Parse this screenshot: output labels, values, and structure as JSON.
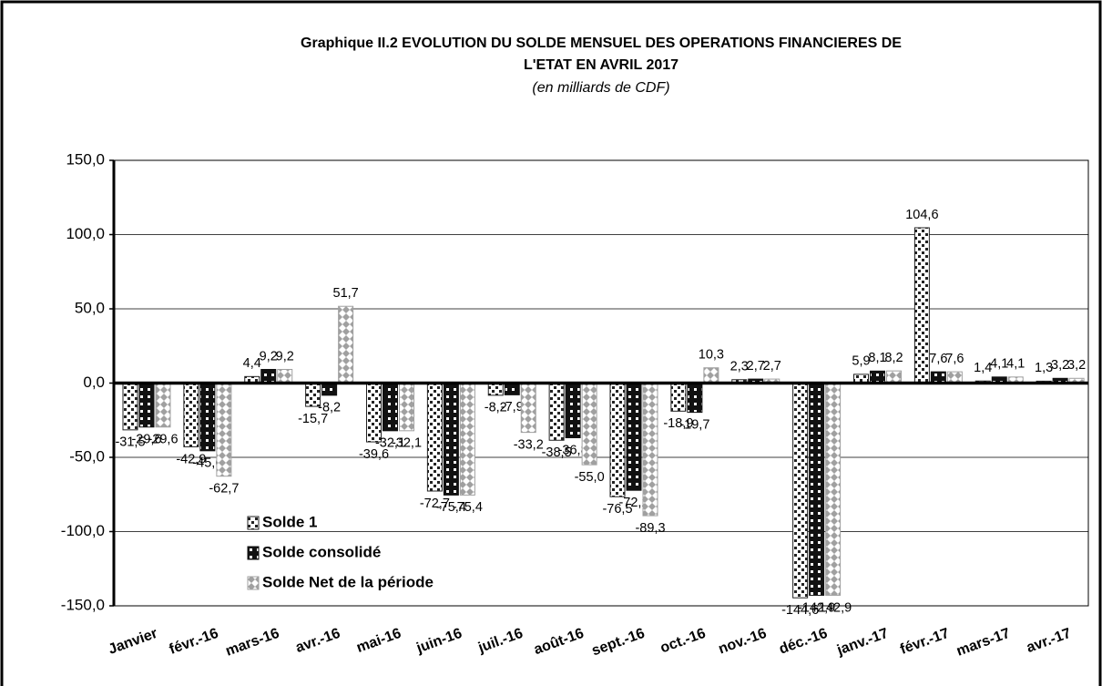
{
  "chart_data": {
    "type": "bar",
    "title": [
      "Graphique II.2  EVOLUTION DU SOLDE MENSUEL DES OPERATIONS FINANCIERES DE",
      "L'ETAT  EN  AVRIL  2017"
    ],
    "subtitle": "(en milliards de CDF)",
    "categories": [
      "Janvier",
      "févr.-16",
      "mars-16",
      "avr.-16",
      "mai-16",
      "juin-16",
      "juil.-16",
      "août-16",
      "sept.-16",
      "oct.-16",
      "nov.-16",
      "déc.-16",
      "janv.-17",
      "févr.-17",
      "mars-17",
      "avr.-17"
    ],
    "series": [
      {
        "name": "Solde 1",
        "color": "#222222",
        "values": [
          -31.5,
          -42.9,
          4.4,
          -15.7,
          -39.6,
          -72.7,
          -8.2,
          -38.5,
          -76.5,
          -18.9,
          2.3,
          -144.6,
          5.9,
          104.6,
          1.4,
          1.3
        ],
        "value_labels": [
          "-31,5",
          "-42,9",
          "4,4",
          "-15,7",
          "-39,6",
          "-72,7",
          "-8,2",
          "-38,5",
          "-76,5",
          "-18,9",
          "2,3",
          "-144,6",
          "5,9",
          "104,6",
          "1,4",
          "1,3"
        ]
      },
      {
        "name": "Solde consolidé",
        "color": "#111111",
        "values": [
          -29.6,
          -45.6,
          9.2,
          -8.2,
          -32.1,
          -75.4,
          -7.9,
          -36.8,
          -72.2,
          -19.7,
          2.7,
          -142.9,
          8.1,
          7.6,
          4.1,
          3.2
        ],
        "value_labels": [
          "-29,6",
          "-45,6",
          "9,2",
          "-8,2",
          "-32,1",
          "-75,4",
          "-7,9",
          "-36,8",
          "-72,2",
          "-19,7",
          "2,7",
          "-142,9",
          "8,1",
          "7,6",
          "4,1",
          "3,2"
        ]
      },
      {
        "name": "Solde Net de la période",
        "color": "#a0a0a0",
        "values": [
          -29.6,
          -62.7,
          9.2,
          51.7,
          -32.1,
          -75.4,
          -33.2,
          -55.0,
          -89.3,
          10.3,
          2.7,
          -142.9,
          8.2,
          7.6,
          4.1,
          3.2
        ],
        "value_labels": [
          "-29,6",
          "-62,7",
          "9,2",
          "51,7",
          "-32,1",
          "-75,4",
          "-33,2",
          "-55,0",
          "-89,3",
          "10,3",
          "2,7",
          "-142,9",
          "8,2",
          "7,6",
          "4,1",
          "3,2"
        ]
      }
    ],
    "ylim": [
      -150,
      150
    ],
    "yticks": [
      {
        "value": -150,
        "label": "-150,0"
      },
      {
        "value": -100,
        "label": "-100,0"
      },
      {
        "value": -50,
        "label": "-50,0"
      },
      {
        "value": 0,
        "label": "0,0"
      },
      {
        "value": 50,
        "label": "50,0"
      },
      {
        "value": 100,
        "label": "100,0"
      },
      {
        "value": 150,
        "label": "150,0"
      }
    ],
    "grid": true
  }
}
